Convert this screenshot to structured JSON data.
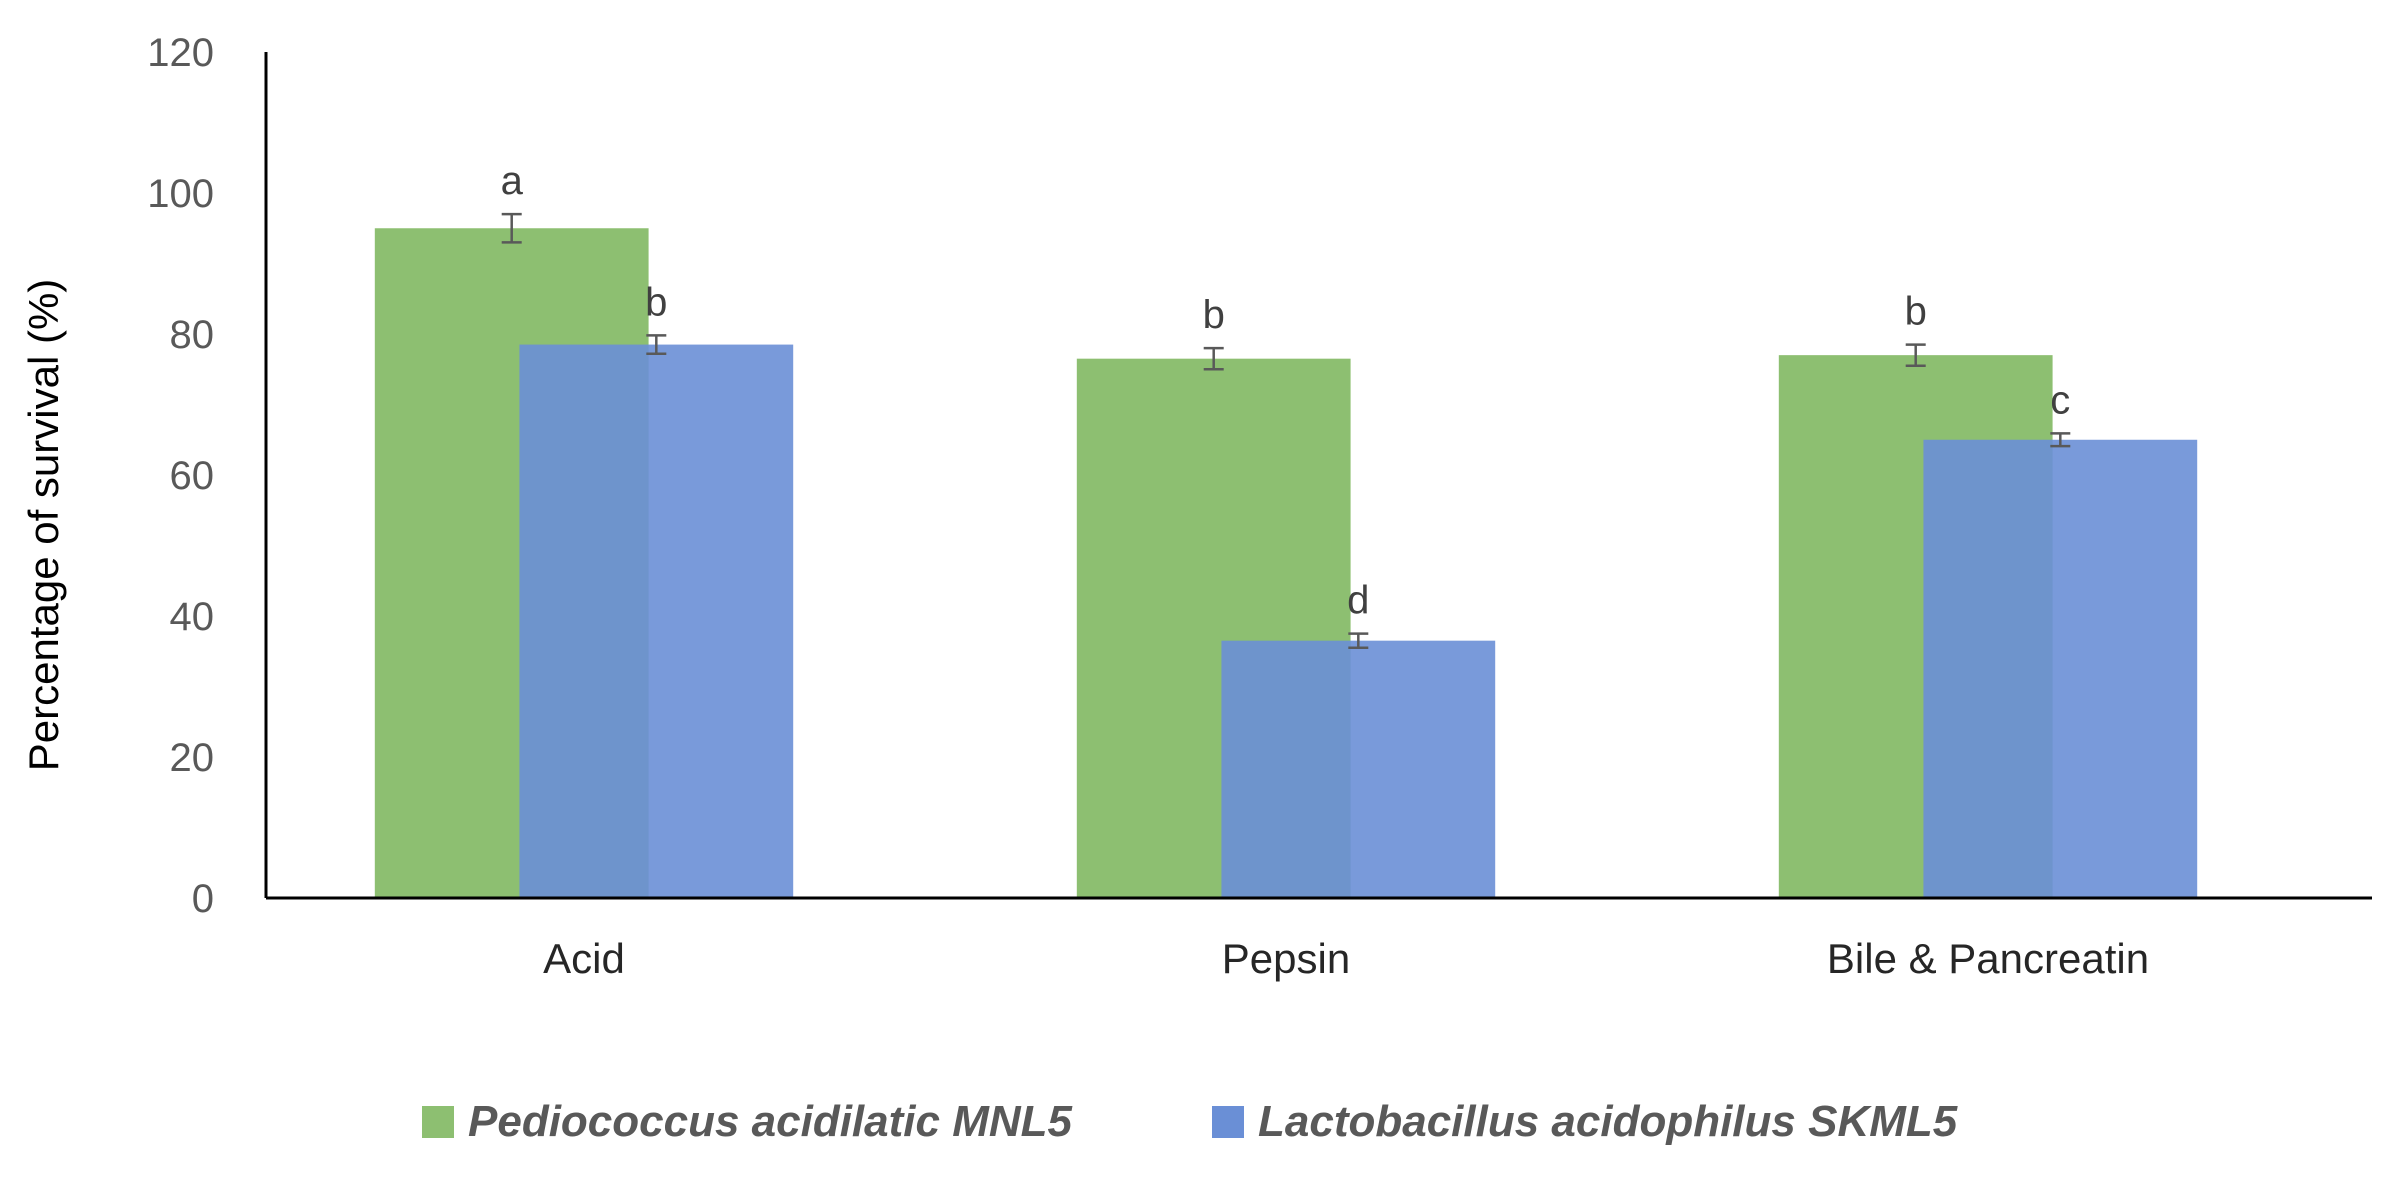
{
  "chart_data": {
    "type": "bar",
    "title": "",
    "xlabel": "",
    "ylabel": "Percentage of survival (%)",
    "ylim": [
      0,
      120
    ],
    "yticks": [
      0,
      20,
      40,
      60,
      80,
      100,
      120
    ],
    "grid": false,
    "legend_position": "bottom",
    "categories": [
      "Acid",
      "Pepsin",
      "Bile & Pancreatin"
    ],
    "series": [
      {
        "name": "Pediococcus acidilatic MNL5",
        "color": "#8dbf71",
        "values": [
          95,
          76.5,
          77
        ],
        "errors": [
          2.0,
          1.5,
          1.5
        ],
        "labels": [
          "a",
          "b",
          "b"
        ]
      },
      {
        "name": "Lactobacillus acidophilus SKML5",
        "color": "#6a8fd6",
        "values": [
          78.5,
          36.5,
          65
        ],
        "errors": [
          1.3,
          1.0,
          0.9
        ],
        "labels": [
          "b",
          "d",
          "c"
        ]
      }
    ]
  }
}
